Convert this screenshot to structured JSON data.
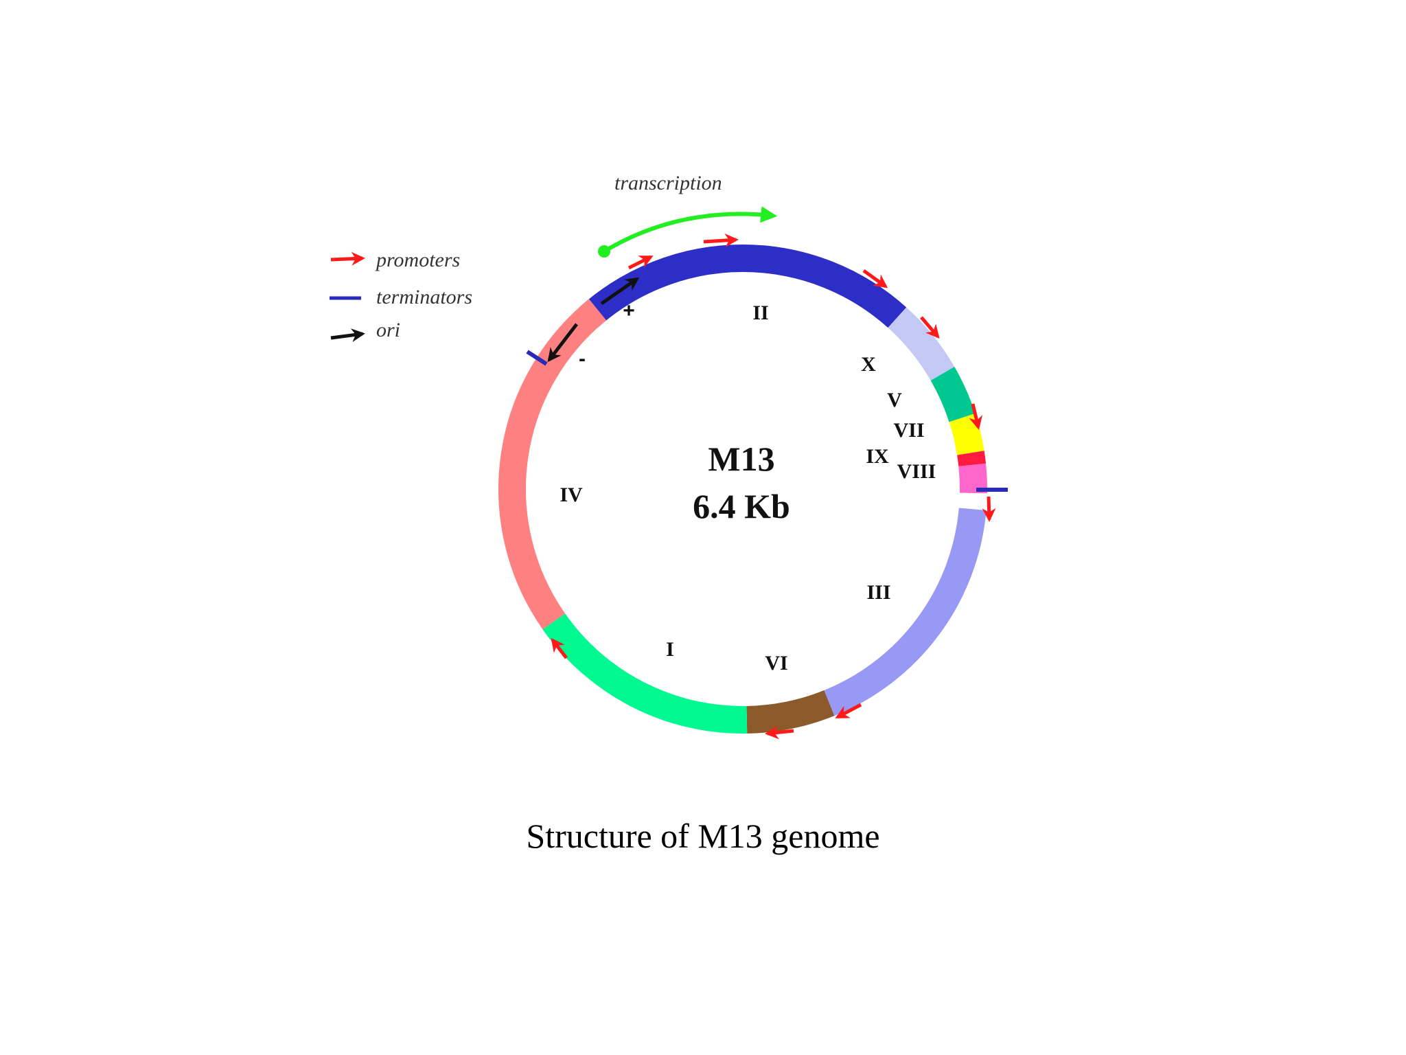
{
  "diagram": {
    "title_line1": "M13",
    "title_line2": "6.4 Kb",
    "transcription_label": "transcription",
    "strand_plus": "+",
    "strand_minus": "-",
    "caption": "Structure of M13 genome"
  },
  "legend": {
    "items": [
      {
        "label": "promoters",
        "symbol": "red-arrow-icon",
        "color": "#ff1a1a"
      },
      {
        "label": "terminators",
        "symbol": "blue-bar-icon",
        "color": "#2a2ab8"
      },
      {
        "label": "ori",
        "symbol": "black-arrow-icon",
        "color": "#111111"
      }
    ]
  },
  "genes": [
    {
      "id": "II",
      "label": "II",
      "color": "#2d2dc8"
    },
    {
      "id": "X",
      "label": "X",
      "color": "#c4c8f5"
    },
    {
      "id": "V",
      "label": "V",
      "color": "#00c890"
    },
    {
      "id": "VII",
      "label": "VII",
      "color": "#ffff00"
    },
    {
      "id": "IX",
      "label": "IX",
      "color": "#ff1a40"
    },
    {
      "id": "VIII",
      "label": "VIII",
      "color": "#ff66cc"
    },
    {
      "id": "III",
      "label": "III",
      "color": "#9898f5"
    },
    {
      "id": "VI",
      "label": "VI",
      "color": "#8c5a2a"
    },
    {
      "id": "I",
      "label": "I",
      "color": "#00f890"
    },
    {
      "id": "IV",
      "label": "IV",
      "color": "#ff8080"
    }
  ],
  "colors": {
    "promoter": "#ff1a1a",
    "terminator": "#2a2ab8",
    "ori": "#111111",
    "transcription": "#22ee22"
  }
}
